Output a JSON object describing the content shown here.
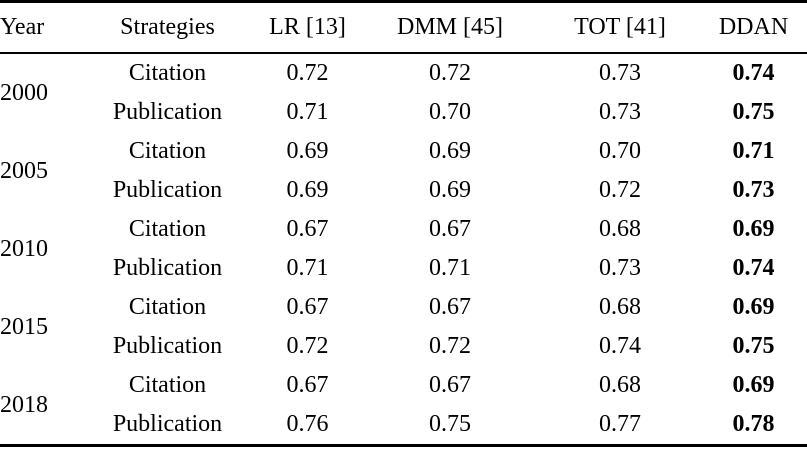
{
  "table": {
    "columns": [
      "Year",
      "Strategies",
      "LR [13]",
      "DMM [45]",
      "TOT [41]",
      "DDAN"
    ],
    "bold_column": "DDAN",
    "text_color": "#000000",
    "groups": [
      {
        "year": "2000",
        "rows": [
          {
            "strategy": "Citation",
            "values": [
              "0.72",
              "0.72",
              "0.73",
              "0.74"
            ]
          },
          {
            "strategy": "Publication",
            "values": [
              "0.71",
              "0.70",
              "0.73",
              "0.75"
            ]
          }
        ]
      },
      {
        "year": "2005",
        "rows": [
          {
            "strategy": "Citation",
            "values": [
              "0.69",
              "0.69",
              "0.70",
              "0.71"
            ]
          },
          {
            "strategy": "Publication",
            "values": [
              "0.69",
              "0.69",
              "0.72",
              "0.73"
            ]
          }
        ]
      },
      {
        "year": "2010",
        "rows": [
          {
            "strategy": "Citation",
            "values": [
              "0.67",
              "0.67",
              "0.68",
              "0.69"
            ]
          },
          {
            "strategy": "Publication",
            "values": [
              "0.71",
              "0.71",
              "0.73",
              "0.74"
            ]
          }
        ]
      },
      {
        "year": "2015",
        "rows": [
          {
            "strategy": "Citation",
            "values": [
              "0.67",
              "0.67",
              "0.68",
              "0.69"
            ]
          },
          {
            "strategy": "Publication",
            "values": [
              "0.72",
              "0.72",
              "0.74",
              "0.75"
            ]
          }
        ]
      },
      {
        "year": "2018",
        "rows": [
          {
            "strategy": "Citation",
            "values": [
              "0.67",
              "0.67",
              "0.68",
              "0.69"
            ]
          },
          {
            "strategy": "Publication",
            "values": [
              "0.76",
              "0.75",
              "0.77",
              "0.78"
            ]
          }
        ]
      }
    ]
  }
}
